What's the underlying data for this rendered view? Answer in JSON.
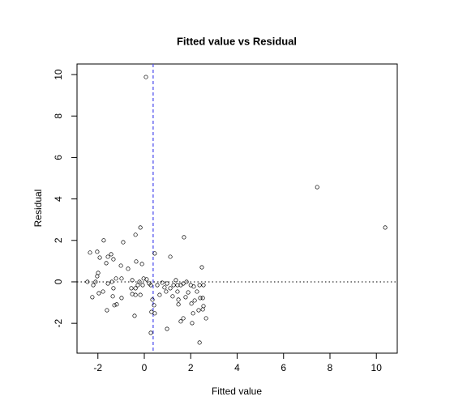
{
  "chart_data": {
    "type": "scatter",
    "title": "Fitted value vs Residual",
    "xlabel": "Fitted value",
    "ylabel": "Residual",
    "x": [
      0.07,
      7.45,
      10.38,
      -2.34,
      -2.03,
      -1.75,
      -1.92,
      -1.57,
      -1.43,
      -1.33,
      -1.64,
      -1.99,
      -2.03,
      -0.91,
      -0.17,
      -0.38,
      1.71,
      1.12,
      0.45,
      -0.35,
      -0.1,
      -0.7,
      -1.01,
      2.48,
      -1.22,
      -0.98,
      -0.52,
      -0.21,
      -0.03,
      0.1,
      0.21,
      0.28,
      -0.07,
      -0.28,
      -0.38,
      -0.56,
      -0.52,
      -0.38,
      -0.17,
      -2.45,
      -2.2,
      -2.1,
      -2.24,
      -1.96,
      -1.57,
      -1.4,
      -1.33,
      -1.36,
      -1.61,
      -1.19,
      -1.29,
      -0.98,
      -1.78,
      0.56,
      0.77,
      0.87,
      0.98,
      1.12,
      1.26,
      1.36,
      1.43,
      1.57,
      1.68,
      1.82,
      2.0,
      2.13,
      2.38,
      2.55,
      1.89,
      1.78,
      1.47,
      1.22,
      0.94,
      0.66,
      0.35,
      0.42,
      0.31,
      0.45,
      -0.42,
      0.98,
      0.28,
      1.68,
      1.57,
      2.06,
      2.1,
      2.03,
      2.17,
      2.27,
      2.41,
      2.52,
      2.34,
      2.52,
      2.55,
      2.66,
      2.38,
      1.47,
      1.43
    ],
    "y": [
      9.88,
      4.57,
      2.62,
      1.41,
      1.45,
      2.0,
      1.17,
      1.21,
      1.33,
      1.09,
      0.9,
      0.43,
      0.27,
      1.91,
      2.62,
      2.27,
      2.15,
      1.21,
      1.37,
      0.98,
      0.86,
      0.63,
      0.78,
      0.7,
      0.16,
      0.16,
      0.08,
      0,
      0.16,
      0.12,
      -0.08,
      -0.16,
      -0.16,
      -0.16,
      -0.31,
      -0.31,
      -0.59,
      -0.63,
      -0.63,
      0,
      -0.16,
      0,
      -0.74,
      -0.55,
      -0.08,
      0,
      -0.31,
      -0.7,
      -1.37,
      -1.09,
      -1.13,
      -0.78,
      -0.47,
      -0.16,
      -0.04,
      -0.27,
      -0.08,
      -0.31,
      -0.16,
      0.08,
      -0.16,
      -0.16,
      -0.08,
      0,
      -0.16,
      -0.23,
      -0.16,
      -0.16,
      -0.51,
      -0.74,
      -0.86,
      -0.7,
      -0.47,
      -0.63,
      -0.86,
      -1.13,
      -1.45,
      -1.52,
      -1.64,
      -2.27,
      -2.46,
      -1.76,
      -1.91,
      -1.99,
      -1.52,
      -1.05,
      -0.9,
      -0.47,
      -0.78,
      -0.78,
      -1.37,
      -1.33,
      -1.17,
      -1.76,
      -2.93,
      -1.09,
      -0.47
    ],
    "xlim": [
      -2.9,
      10.9
    ],
    "ylim": [
      -3.44,
      10.51
    ],
    "xticks": [
      -2,
      0,
      2,
      4,
      6,
      8,
      10
    ],
    "yticks": [
      -2,
      0,
      2,
      4,
      6,
      8,
      10
    ],
    "hline": 0,
    "vline": 0.38,
    "vline_color": "#5555ee",
    "color": "#000000"
  }
}
